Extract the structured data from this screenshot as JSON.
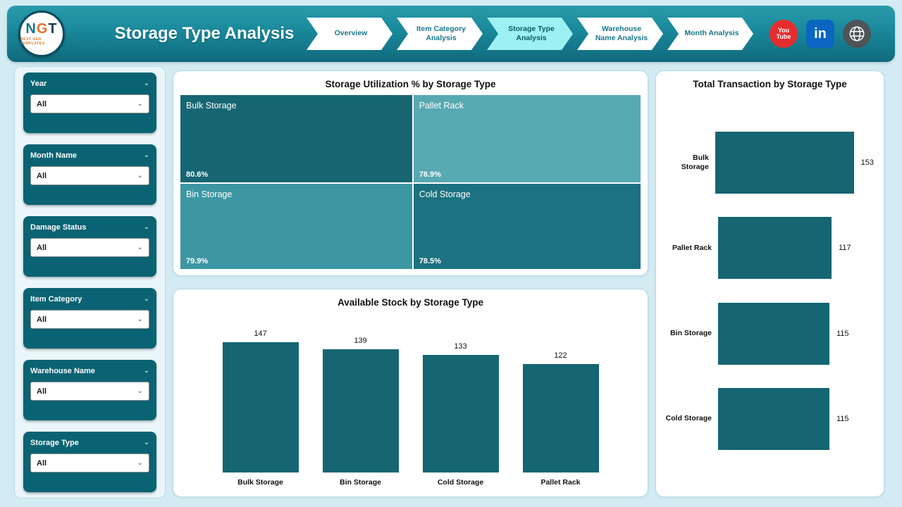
{
  "header": {
    "title": "Storage Type Analysis",
    "logo": {
      "text": "NGT",
      "subtext": "NEXT GEN TEMPLATES"
    },
    "nav": [
      {
        "label": "Overview",
        "active": false
      },
      {
        "label": "Item Category Analysis",
        "active": false
      },
      {
        "label": "Storage Type Analysis",
        "active": true
      },
      {
        "label": "Warehouse Name Analysis",
        "active": false
      },
      {
        "label": "Month Analysis",
        "active": false
      }
    ],
    "social": [
      {
        "name": "youtube-icon",
        "lines": [
          "You",
          "Tube"
        ],
        "bg": "#e62d2d",
        "shape": "circle"
      },
      {
        "name": "linkedin-icon",
        "glyph": "in",
        "bg": "#0a66c2",
        "shape": "rounded-square"
      },
      {
        "name": "website-icon",
        "bg": "#4e5458",
        "shape": "circle"
      }
    ]
  },
  "filters": [
    {
      "label": "Year",
      "value": "All"
    },
    {
      "label": "Month Name",
      "value": "All"
    },
    {
      "label": "Damage Status",
      "value": "All"
    },
    {
      "label": "Item Category",
      "value": "All"
    },
    {
      "label": "Warehouse Name",
      "value": "All"
    },
    {
      "label": "Storage Type",
      "value": "All"
    }
  ],
  "colors": {
    "page_bg": "#d3ecf3",
    "header_teal": "#19889b",
    "active_tab_bg": "#9df1f2",
    "filter_bg": "#0a6373",
    "primary_bar": "#156672"
  },
  "chart_data": [
    {
      "type": "treemap",
      "title": "Storage Utilization % by Storage Type",
      "items": [
        {
          "label": "Bulk Storage",
          "value": 80.6,
          "display": "80.6%",
          "color": "#156672"
        },
        {
          "label": "Pallet Rack",
          "value": 78.9,
          "display": "78.9%",
          "color": "#57a9b2"
        },
        {
          "label": "Bin Storage",
          "value": 79.9,
          "display": "79.9%",
          "color": "#3d97a2"
        },
        {
          "label": "Cold Storage",
          "value": 78.5,
          "display": "78.5%",
          "color": "#1c7280"
        }
      ]
    },
    {
      "type": "bar",
      "title": "Available Stock by Storage Type",
      "categories": [
        "Bulk Storage",
        "Bin Storage",
        "Cold Storage",
        "Pallet Rack"
      ],
      "values": [
        147,
        139,
        133,
        122
      ],
      "ylim": [
        0,
        147
      ],
      "bar_color": "#156672",
      "legend": "none",
      "grid": false
    },
    {
      "type": "bar-horizontal",
      "title": "Total Transaction by Storage Type",
      "categories": [
        "Bulk Storage",
        "Pallet Rack",
        "Bin Storage",
        "Cold Storage"
      ],
      "values": [
        153,
        117,
        115,
        115
      ],
      "xlim": [
        0,
        153
      ],
      "bar_color": "#156672",
      "legend": "none",
      "grid": false
    }
  ]
}
